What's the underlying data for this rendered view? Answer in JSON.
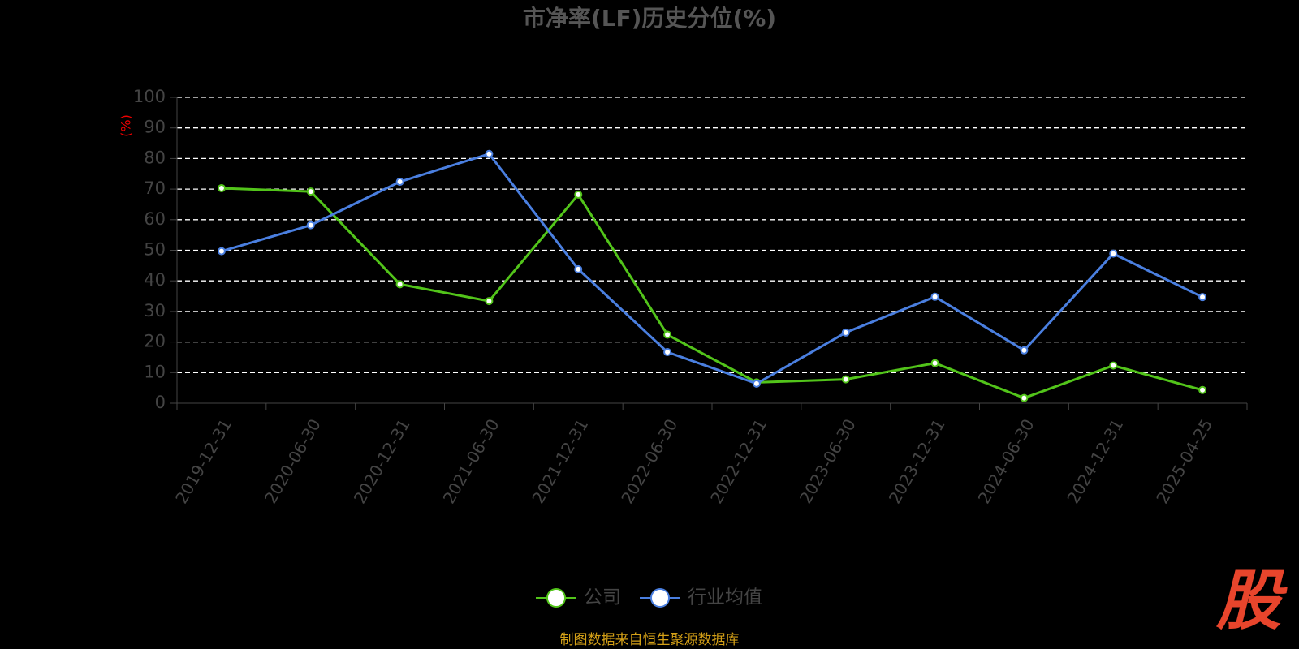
{
  "chart_data": {
    "type": "line",
    "title": "市净率(LF)历史分位(%)",
    "y_label": "(%)",
    "categories": [
      "2019-12-31",
      "2020-06-30",
      "2020-12-31",
      "2021-06-30",
      "2021-12-31",
      "2022-06-30",
      "2022-12-31",
      "2023-06-30",
      "2023-12-31",
      "2024-06-30",
      "2024-12-31",
      "2025-04-25"
    ],
    "series": [
      {
        "name": "公司",
        "color": "#52c41a",
        "values": [
          70.3,
          69.2,
          38.9,
          33.4,
          68.2,
          22.4,
          6.8,
          7.8,
          13.1,
          1.7,
          12.3,
          4.3
        ]
      },
      {
        "name": "行业均值",
        "color": "#4a7fe0",
        "values": [
          49.7,
          58.2,
          72.4,
          81.5,
          43.8,
          16.7,
          6.4,
          23.1,
          34.8,
          17.3,
          48.9,
          34.7
        ]
      }
    ],
    "ylim": [
      0,
      100
    ],
    "yticks": [
      0,
      10,
      20,
      30,
      40,
      50,
      60,
      70,
      80,
      90,
      100
    ],
    "grid": true,
    "source": "制图数据来自恒生聚源数据库",
    "logo": "股"
  }
}
